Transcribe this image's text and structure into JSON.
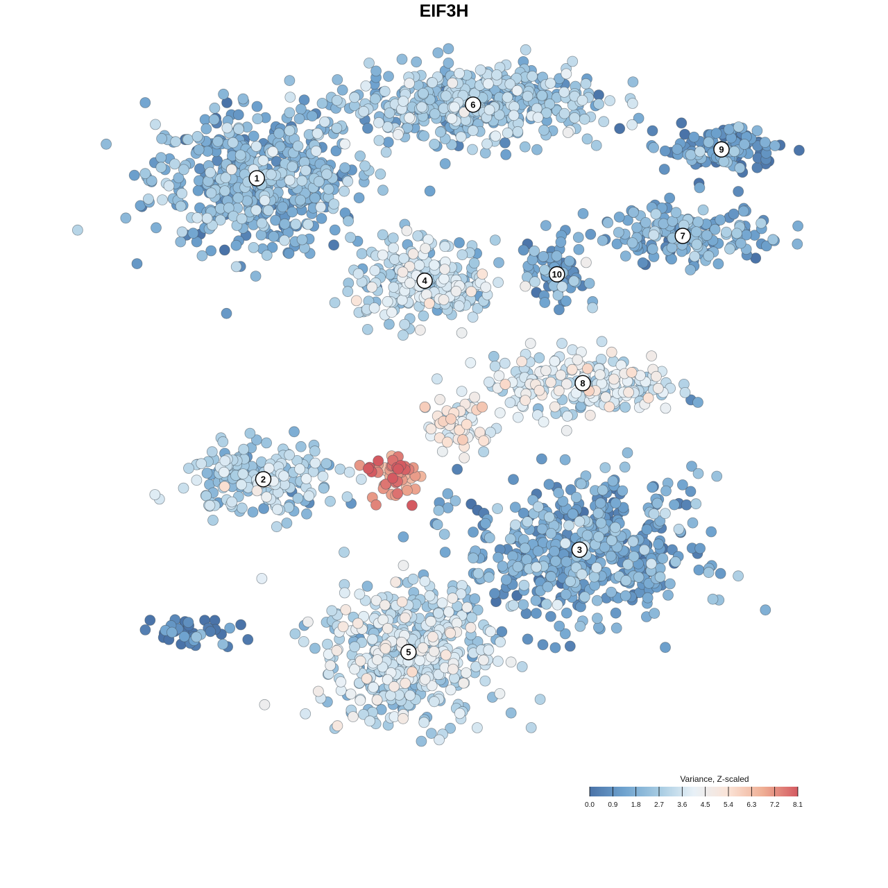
{
  "chart_data": {
    "type": "scatter",
    "title": "EIF3H",
    "color_scale": {
      "title": "Variance, Z-scaled",
      "ticks": [
        "0.0",
        "0.9",
        "1.8",
        "2.7",
        "3.6",
        "4.5",
        "5.4",
        "6.3",
        "7.2",
        "8.1"
      ],
      "range": [
        0,
        8.1
      ],
      "colors": [
        "#4a73a8",
        "#6fa3cf",
        "#a6cbe2",
        "#e8f1f7",
        "#fbe3d6",
        "#efae94",
        "#d45a61"
      ]
    },
    "clusters": [
      {
        "label": "1",
        "center": [
          -5.8,
          6.3
        ],
        "spread": [
          3.9,
          2.5
        ],
        "n": 520,
        "mean": 1.8
      },
      {
        "label": "6",
        "center": [
          0.9,
          8.6
        ],
        "spread": [
          4.5,
          1.4
        ],
        "n": 480,
        "mean": 2.3
      },
      {
        "label": "4",
        "center": [
          -0.6,
          3.1
        ],
        "spread": [
          2.6,
          1.5
        ],
        "n": 260,
        "mean": 3.0
      },
      {
        "label": "9",
        "center": [
          8.6,
          7.2
        ],
        "spread": [
          2.1,
          0.9
        ],
        "n": 110,
        "mean": 1.0
      },
      {
        "label": "7",
        "center": [
          7.4,
          4.5
        ],
        "spread": [
          3.4,
          1.0
        ],
        "n": 170,
        "mean": 1.5
      },
      {
        "label": "10",
        "center": [
          3.5,
          3.3
        ],
        "spread": [
          1.1,
          1.2
        ],
        "n": 70,
        "mean": 1.3
      },
      {
        "label": "8",
        "center": [
          4.3,
          -0.1
        ],
        "spread": [
          3.5,
          1.2
        ],
        "n": 200,
        "mean": 3.6
      },
      {
        "label": "2",
        "center": [
          -5.6,
          -3.1
        ],
        "spread": [
          2.8,
          1.3
        ],
        "n": 200,
        "mean": 2.7
      },
      {
        "label": "3",
        "center": [
          4.2,
          -5.3
        ],
        "spread": [
          4.3,
          2.6
        ],
        "n": 500,
        "mean": 1.4
      },
      {
        "label": "5",
        "center": [
          -1.1,
          -8.5
        ],
        "spread": [
          3.2,
          2.6
        ],
        "n": 470,
        "mean": 3.2
      },
      {
        "label": "",
        "center": [
          -7.8,
          -7.9
        ],
        "spread": [
          1.5,
          0.6
        ],
        "n": 40,
        "mean": 0.3
      },
      {
        "label": "",
        "center": [
          -1.6,
          -3.0
        ],
        "spread": [
          0.8,
          0.9
        ],
        "n": 55,
        "mean": 7.3
      },
      {
        "label": "",
        "center": [
          0.6,
          -1.4
        ],
        "spread": [
          1.6,
          1.0
        ],
        "n": 60,
        "mean": 4.4
      }
    ],
    "xlim": [
      -12.9,
      12.9
    ],
    "ylim": [
      -15.0,
      11.0
    ],
    "axes_visible": false,
    "grid": false,
    "legend_position": "bottom-right"
  }
}
